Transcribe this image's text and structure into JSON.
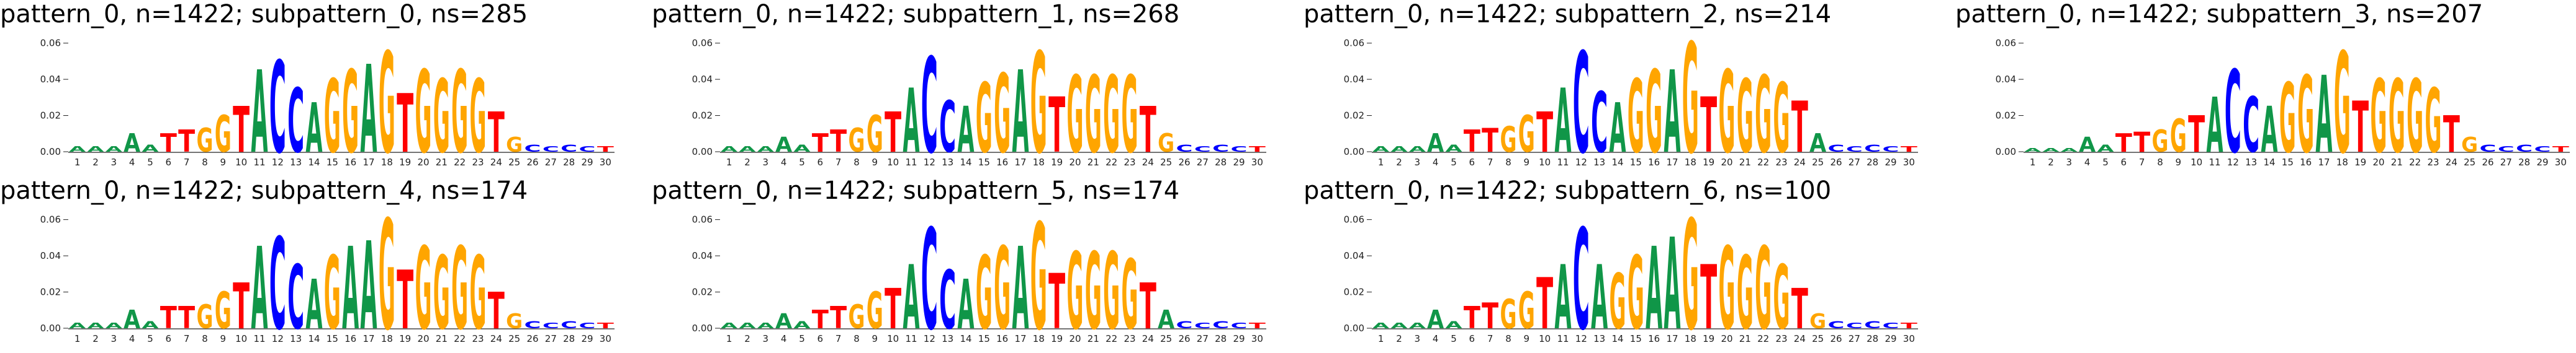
{
  "figure": {
    "background": "#ffffff",
    "base_colors": {
      "A": "#109648",
      "C": "#0000ff",
      "G": "#ffa500",
      "T": "#ff0000"
    }
  },
  "chart_data": [
    {
      "type": "sequence-logo",
      "title": "pattern_0, n=1422; subpattern_0, ns=285",
      "positions": [
        1,
        2,
        3,
        4,
        5,
        6,
        7,
        8,
        9,
        10,
        11,
        12,
        13,
        14,
        15,
        16,
        17,
        18,
        19,
        20,
        21,
        22,
        23,
        24,
        25,
        26,
        27,
        28,
        29,
        30
      ],
      "yticks": [
        "0.00",
        "0.02",
        "0.04",
        "0.06"
      ],
      "ylim": [
        0,
        0.065
      ],
      "consensus": "AAAAATTGGTACCAGGAGTGGGGTGCCCCT",
      "heights": [
        0.003,
        0.003,
        0.003,
        0.01,
        0.004,
        0.01,
        0.012,
        0.013,
        0.02,
        0.025,
        0.045,
        0.05,
        0.035,
        0.027,
        0.04,
        0.045,
        0.048,
        0.055,
        0.032,
        0.045,
        0.04,
        0.045,
        0.04,
        0.022,
        0.008,
        0.004,
        0.003,
        0.004,
        0.003,
        0.003
      ]
    },
    {
      "type": "sequence-logo",
      "title": "pattern_0, n=1422; subpattern_1, ns=268",
      "positions": [
        1,
        2,
        3,
        4,
        5,
        6,
        7,
        8,
        9,
        10,
        11,
        12,
        13,
        14,
        15,
        16,
        17,
        18,
        19,
        20,
        21,
        22,
        23,
        24,
        25,
        26,
        27,
        28,
        29,
        30
      ],
      "yticks": [
        "0.00",
        "0.02",
        "0.04",
        "0.06"
      ],
      "ylim": [
        0,
        0.065
      ],
      "consensus": "AAAAATTGGTACCAGGAGTGGGGTGCCCCT",
      "heights": [
        0.003,
        0.003,
        0.003,
        0.008,
        0.004,
        0.01,
        0.012,
        0.013,
        0.02,
        0.022,
        0.035,
        0.052,
        0.028,
        0.025,
        0.038,
        0.043,
        0.045,
        0.055,
        0.03,
        0.042,
        0.042,
        0.042,
        0.042,
        0.025,
        0.01,
        0.004,
        0.003,
        0.004,
        0.003,
        0.003
      ]
    },
    {
      "type": "sequence-logo",
      "title": "pattern_0, n=1422; subpattern_2, ns=214",
      "positions": [
        1,
        2,
        3,
        4,
        5,
        6,
        7,
        8,
        9,
        10,
        11,
        12,
        13,
        14,
        15,
        16,
        17,
        18,
        19,
        20,
        21,
        22,
        23,
        24,
        25,
        26,
        27,
        28,
        29,
        30
      ],
      "yticks": [
        "0.00",
        "0.02",
        "0.04",
        "0.06"
      ],
      "ylim": [
        0,
        0.065
      ],
      "consensus": "AAAAATTGGTACCAGGAGTGGGGTACCCCT",
      "heights": [
        0.003,
        0.003,
        0.003,
        0.01,
        0.004,
        0.012,
        0.013,
        0.014,
        0.02,
        0.022,
        0.035,
        0.055,
        0.033,
        0.027,
        0.04,
        0.045,
        0.045,
        0.06,
        0.03,
        0.045,
        0.04,
        0.042,
        0.038,
        0.028,
        0.01,
        0.004,
        0.003,
        0.004,
        0.003,
        0.003
      ]
    },
    {
      "type": "sequence-logo",
      "title": "pattern_0, n=1422; subpattern_3, ns=207",
      "positions": [
        1,
        2,
        3,
        4,
        5,
        6,
        7,
        8,
        9,
        10,
        11,
        12,
        13,
        14,
        15,
        16,
        17,
        18,
        19,
        20,
        21,
        22,
        23,
        24,
        25,
        26,
        27,
        28,
        29,
        30
      ],
      "yticks": [
        "0.00",
        "0.02",
        "0.04",
        "0.06"
      ],
      "ylim": [
        0,
        0.065
      ],
      "consensus": "AAAAATTGGTACCAGGAGTGGGGTGCCCCT",
      "heights": [
        0.002,
        0.002,
        0.002,
        0.008,
        0.004,
        0.01,
        0.011,
        0.012,
        0.018,
        0.02,
        0.03,
        0.045,
        0.03,
        0.025,
        0.038,
        0.042,
        0.042,
        0.055,
        0.028,
        0.04,
        0.04,
        0.04,
        0.035,
        0.02,
        0.008,
        0.004,
        0.003,
        0.004,
        0.003,
        0.003
      ]
    },
    {
      "type": "sequence-logo",
      "title": "pattern_0, n=1422; subpattern_4, ns=174",
      "positions": [
        1,
        2,
        3,
        4,
        5,
        6,
        7,
        8,
        9,
        10,
        11,
        12,
        13,
        14,
        15,
        16,
        17,
        18,
        19,
        20,
        21,
        22,
        23,
        24,
        25,
        26,
        27,
        28,
        29,
        30
      ],
      "yticks": [
        "0.00",
        "0.02",
        "0.04",
        "0.06"
      ],
      "ylim": [
        0,
        0.065
      ],
      "consensus": "AAAAATTGGTACCAGAAGTGGGGTGCCCCT",
      "heights": [
        0.003,
        0.003,
        0.003,
        0.01,
        0.004,
        0.012,
        0.012,
        0.013,
        0.02,
        0.025,
        0.045,
        0.05,
        0.035,
        0.027,
        0.04,
        0.045,
        0.048,
        0.06,
        0.032,
        0.045,
        0.04,
        0.045,
        0.04,
        0.02,
        0.008,
        0.004,
        0.003,
        0.004,
        0.003,
        0.003
      ]
    },
    {
      "type": "sequence-logo",
      "title": "pattern_0, n=1422; subpattern_5, ns=174",
      "positions": [
        1,
        2,
        3,
        4,
        5,
        6,
        7,
        8,
        9,
        10,
        11,
        12,
        13,
        14,
        15,
        16,
        17,
        18,
        19,
        20,
        21,
        22,
        23,
        24,
        25,
        26,
        27,
        28,
        29,
        30
      ],
      "yticks": [
        "0.00",
        "0.02",
        "0.04",
        "0.06"
      ],
      "ylim": [
        0,
        0.065
      ],
      "consensus": "AAAAATTGGTACCAGGAGTGGGGTACCCCT",
      "heights": [
        0.003,
        0.003,
        0.003,
        0.008,
        0.004,
        0.01,
        0.012,
        0.013,
        0.02,
        0.022,
        0.035,
        0.055,
        0.032,
        0.027,
        0.04,
        0.045,
        0.045,
        0.058,
        0.03,
        0.042,
        0.042,
        0.042,
        0.038,
        0.025,
        0.01,
        0.004,
        0.003,
        0.004,
        0.003,
        0.003
      ]
    },
    {
      "type": "sequence-logo",
      "title": "pattern_0, n=1422; subpattern_6, ns=100",
      "positions": [
        1,
        2,
        3,
        4,
        5,
        6,
        7,
        8,
        9,
        10,
        11,
        12,
        13,
        14,
        15,
        16,
        17,
        18,
        19,
        20,
        21,
        22,
        23,
        24,
        25,
        26,
        27,
        28,
        29,
        30
      ],
      "yticks": [
        "0.00",
        "0.02",
        "0.04",
        "0.06"
      ],
      "ylim": [
        0,
        0.065
      ],
      "consensus": "AAAAATTGGTACAGGAAGTGGGGTGCCCCT",
      "heights": [
        0.003,
        0.003,
        0.003,
        0.01,
        0.004,
        0.012,
        0.014,
        0.016,
        0.02,
        0.028,
        0.035,
        0.055,
        0.035,
        0.03,
        0.04,
        0.045,
        0.05,
        0.06,
        0.035,
        0.045,
        0.04,
        0.045,
        0.035,
        0.022,
        0.008,
        0.004,
        0.003,
        0.004,
        0.003,
        0.003
      ]
    }
  ]
}
